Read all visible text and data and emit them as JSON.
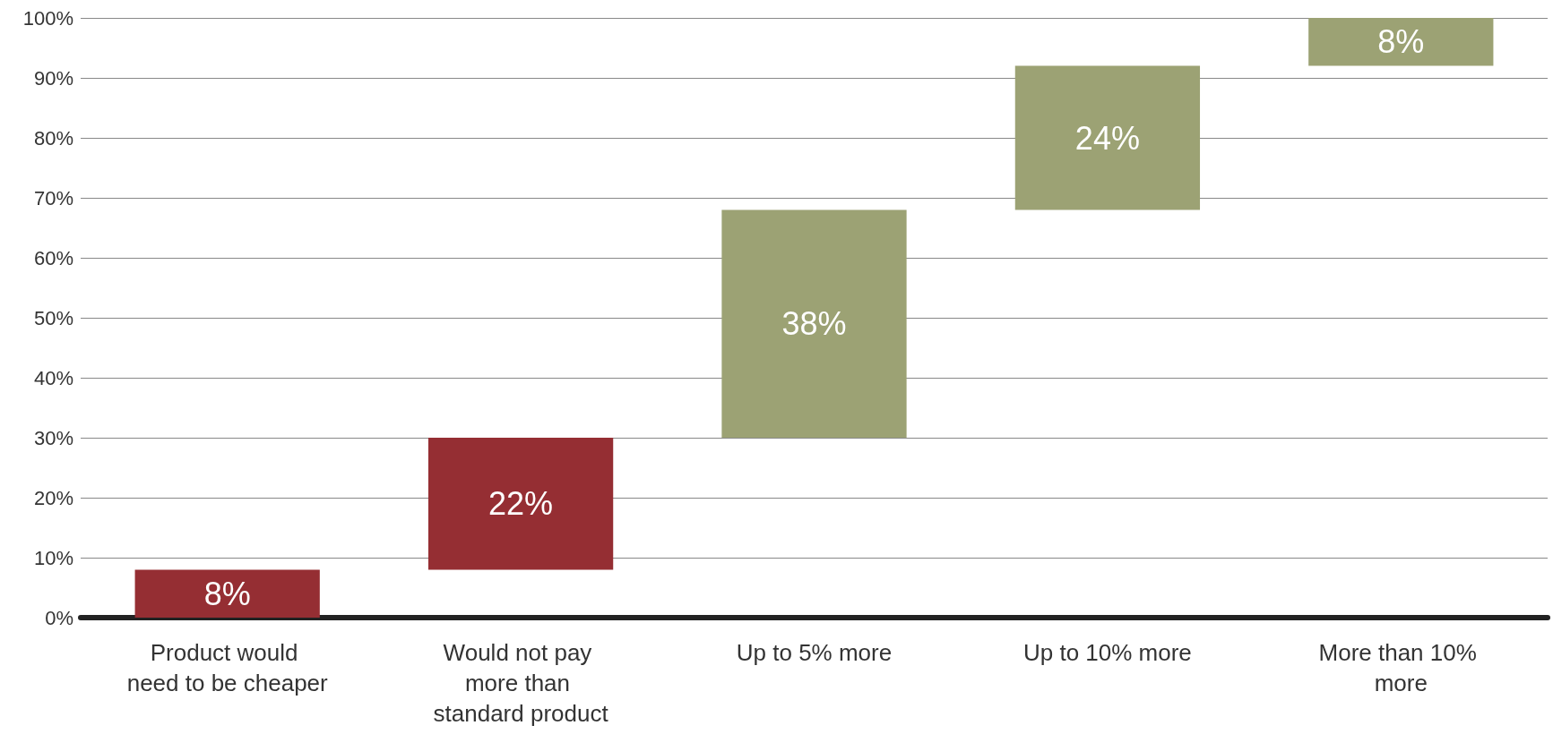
{
  "chart_data": {
    "type": "bar",
    "categories": [
      "Product would need to be cheaper",
      "Would not pay more than standard product",
      "Up to 5% more",
      "Up to 10% more",
      "More than 10% more"
    ],
    "values": [
      8,
      22,
      38,
      24,
      8
    ],
    "base": [
      0,
      8,
      30,
      68,
      92
    ],
    "colors": [
      "#952e33",
      "#952e33",
      "#9ca274",
      "#9ca274",
      "#9ca274"
    ],
    "value_labels": [
      "8%",
      "22%",
      "38%",
      "24%",
      "8%"
    ],
    "ylim": [
      0,
      100
    ],
    "yticks": [
      {
        "value": 0,
        "label": "0%"
      },
      {
        "value": 10,
        "label": "10%"
      },
      {
        "value": 20,
        "label": "20%"
      },
      {
        "value": 30,
        "label": "30%"
      },
      {
        "value": 40,
        "label": "40%"
      },
      {
        "value": 50,
        "label": "50%"
      },
      {
        "value": 60,
        "label": "60%"
      },
      {
        "value": 70,
        "label": "70%"
      },
      {
        "value": 80,
        "label": "80%"
      },
      {
        "value": 90,
        "label": "90%"
      },
      {
        "value": 100,
        "label": "100%"
      }
    ],
    "grid": "y"
  }
}
